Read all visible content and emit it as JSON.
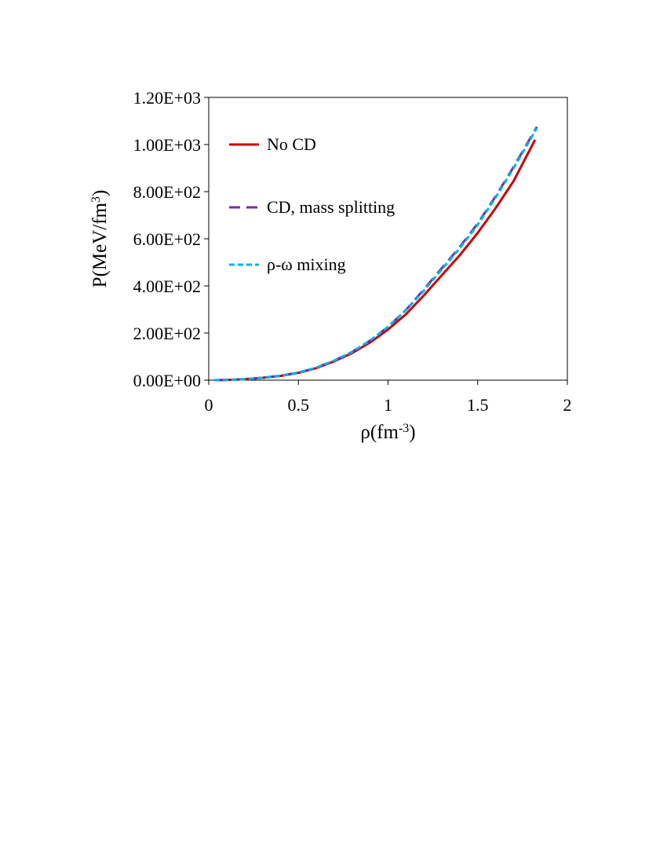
{
  "chart_data": {
    "type": "line",
    "xlabel": {
      "base": "ρ(fm",
      "sup": "-3",
      "tail": ")"
    },
    "ylabel": {
      "base": "P(MeV/fm",
      "sup": "3",
      "tail": ")"
    },
    "xlim": [
      0,
      2
    ],
    "ylim": [
      0,
      1200
    ],
    "x_ticks": [
      "0",
      "0.5",
      "1",
      "1.5",
      "2"
    ],
    "y_ticks": [
      "0.00E+00",
      "2.00E+02",
      "4.00E+02",
      "6.00E+02",
      "8.00E+02",
      "1.00E+03",
      "1.20E+03"
    ],
    "grid": false,
    "legend_position": "top-left",
    "series": [
      {
        "name": "No CD",
        "color": "#cc0000",
        "dash": "solid",
        "x": [
          0.03,
          0.1,
          0.2,
          0.3,
          0.4,
          0.5,
          0.6,
          0.7,
          0.8,
          0.9,
          1.0,
          1.1,
          1.2,
          1.3,
          1.4,
          1.5,
          1.6,
          1.7,
          1.82
        ],
        "y": [
          0,
          1,
          4,
          10,
          18,
          31,
          51,
          80,
          115,
          160,
          215,
          280,
          360,
          445,
          530,
          625,
          730,
          845,
          1020
        ]
      },
      {
        "name": "CD, mass splitting",
        "color": "#7030a0",
        "dash": "long-dash",
        "x": [
          0.03,
          0.1,
          0.2,
          0.3,
          0.4,
          0.5,
          0.6,
          0.7,
          0.8,
          0.9,
          1.0,
          1.1,
          1.2,
          1.3,
          1.4,
          1.5,
          1.6,
          1.7,
          1.83
        ],
        "y": [
          0,
          1,
          4,
          10,
          19,
          32,
          53,
          83,
          120,
          168,
          226,
          298,
          385,
          475,
          565,
          665,
          780,
          905,
          1075
        ]
      },
      {
        "name": "ρ-ω mixing",
        "color": "#00b0f0",
        "dash": "short-dash",
        "x": [
          0.03,
          0.1,
          0.2,
          0.3,
          0.4,
          0.5,
          0.6,
          0.7,
          0.8,
          0.9,
          1.0,
          1.1,
          1.2,
          1.3,
          1.4,
          1.5,
          1.6,
          1.7,
          1.83
        ],
        "y": [
          0,
          1,
          4,
          10,
          19,
          32,
          53,
          83,
          120,
          168,
          226,
          298,
          380,
          470,
          560,
          660,
          775,
          900,
          1070
        ]
      }
    ]
  }
}
